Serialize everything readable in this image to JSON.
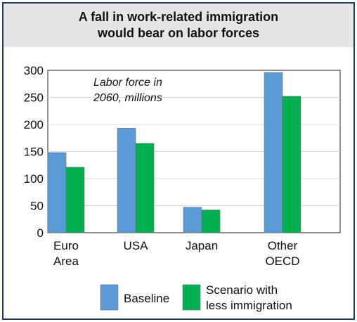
{
  "chart_data": {
    "type": "bar",
    "title": "A fall in work-related immigration would bear on labor forces",
    "title_lines": [
      "A fall in work-related immigration",
      "would bear on labor forces"
    ],
    "annotation_lines": [
      "Labor force in",
      "2060, millions"
    ],
    "categories": [
      {
        "lines": [
          "Euro",
          "Area"
        ]
      },
      {
        "lines": [
          "USA"
        ]
      },
      {
        "lines": [
          "Japan"
        ]
      },
      {
        "lines": [
          "Other",
          "OECD"
        ]
      }
    ],
    "series": [
      {
        "name": "Baseline",
        "legend_lines": [
          "Baseline"
        ],
        "color": "#5b9bd5",
        "values": [
          148,
          193,
          47,
          296
        ]
      },
      {
        "name": "Scenario with less immigration",
        "legend_lines": [
          "Scenario with",
          "less immigration"
        ],
        "color": "#00b050",
        "values": [
          121,
          165,
          42,
          252
        ]
      }
    ],
    "ylim": [
      0,
      300
    ],
    "yticks": [
      0,
      50,
      100,
      150,
      200,
      250,
      300
    ],
    "grid": true,
    "legend_placement": "bottom"
  }
}
